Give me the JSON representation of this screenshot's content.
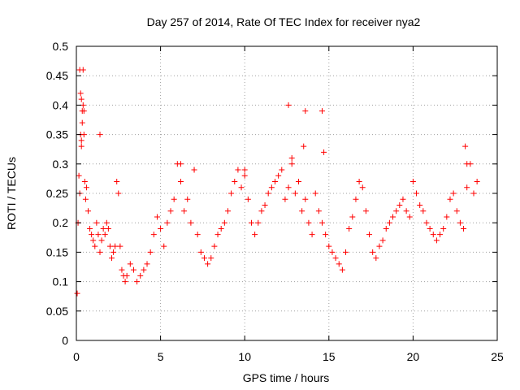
{
  "chart_data": {
    "type": "scatter",
    "title": "Day 257 of 2014, Rate Of TEC Index for receiver nya2",
    "xlabel": "GPS time / hours",
    "ylabel": "ROTI / TECUs",
    "xlim": [
      0,
      25
    ],
    "ylim": [
      0,
      0.5
    ],
    "x_ticks": [
      "0",
      "5",
      "10",
      "15",
      "20",
      "25"
    ],
    "y_ticks": [
      "0",
      "0.05",
      "0.1",
      "0.15",
      "0.2",
      "0.25",
      "0.3",
      "0.35",
      "0.4",
      "0.45",
      "0.5"
    ],
    "grid": true,
    "legend": "none",
    "marker": "plus",
    "color": "#ff0000",
    "series": [
      {
        "x": [
          0.05,
          0.1,
          0.15,
          0.2,
          0.25,
          0.3,
          0.35,
          0.4,
          0.45,
          0.5,
          0.55,
          0.6,
          0.7,
          0.8,
          0.9,
          1.0,
          1.1,
          1.2,
          1.3,
          1.4,
          1.5,
          1.6,
          1.7,
          1.8,
          1.9,
          2.0,
          2.1,
          2.2,
          2.3,
          2.4,
          2.5,
          2.6,
          2.7,
          2.8,
          2.9,
          3.0,
          3.2,
          3.4,
          3.6,
          3.8,
          4.0,
          4.2,
          4.4,
          4.6,
          4.8,
          5.0,
          5.2,
          5.4,
          5.6,
          5.8,
          6.0,
          6.2,
          6.4,
          6.6,
          6.8,
          7.0,
          7.2,
          7.4,
          7.6,
          7.8,
          8.0,
          8.2,
          8.4,
          8.6,
          8.8,
          9.0,
          9.2,
          9.4,
          9.6,
          9.8,
          10.0,
          10.2,
          10.4,
          10.6,
          10.8,
          11.0,
          11.2,
          11.4,
          11.6,
          11.8,
          12.0,
          12.2,
          12.4,
          12.6,
          12.8,
          13.0,
          13.2,
          13.4,
          13.6,
          13.8,
          14.0,
          14.2,
          14.4,
          14.6,
          14.8,
          15.0,
          15.2,
          15.4,
          15.6,
          15.8,
          16.0,
          16.2,
          16.4,
          16.6,
          16.8,
          17.0,
          17.2,
          17.4,
          17.6,
          17.8,
          18.0,
          18.2,
          18.4,
          18.6,
          18.8,
          19.0,
          19.2,
          19.4,
          19.6,
          19.8,
          20.0,
          20.2,
          20.4,
          20.6,
          20.8,
          21.0,
          21.2,
          21.4,
          21.6,
          21.8,
          22.0,
          22.2,
          22.4,
          22.6,
          22.8,
          23.0,
          23.2,
          23.4,
          23.6,
          23.8,
          0.2,
          0.25,
          0.3,
          0.3,
          0.35,
          0.4,
          0.45,
          1.4,
          6.2,
          7.0,
          10.0,
          12.6,
          12.8,
          13.5,
          13.6,
          14.6,
          14.7,
          23.1,
          23.2
        ],
        "y": [
          0.08,
          0.2,
          0.28,
          0.25,
          0.35,
          0.41,
          0.39,
          0.46,
          0.35,
          0.27,
          0.24,
          0.26,
          0.22,
          0.19,
          0.18,
          0.17,
          0.16,
          0.2,
          0.18,
          0.15,
          0.17,
          0.19,
          0.18,
          0.2,
          0.19,
          0.16,
          0.14,
          0.15,
          0.16,
          0.27,
          0.25,
          0.16,
          0.12,
          0.11,
          0.1,
          0.11,
          0.13,
          0.12,
          0.1,
          0.11,
          0.12,
          0.13,
          0.15,
          0.18,
          0.21,
          0.19,
          0.16,
          0.2,
          0.22,
          0.24,
          0.3,
          0.27,
          0.22,
          0.24,
          0.2,
          0.29,
          0.18,
          0.15,
          0.14,
          0.13,
          0.14,
          0.16,
          0.18,
          0.19,
          0.2,
          0.22,
          0.25,
          0.27,
          0.29,
          0.26,
          0.28,
          0.24,
          0.2,
          0.18,
          0.2,
          0.22,
          0.23,
          0.25,
          0.26,
          0.27,
          0.28,
          0.29,
          0.24,
          0.26,
          0.3,
          0.25,
          0.27,
          0.22,
          0.24,
          0.2,
          0.18,
          0.25,
          0.22,
          0.2,
          0.18,
          0.16,
          0.15,
          0.14,
          0.13,
          0.12,
          0.15,
          0.19,
          0.21,
          0.24,
          0.27,
          0.26,
          0.22,
          0.18,
          0.15,
          0.14,
          0.16,
          0.17,
          0.19,
          0.2,
          0.21,
          0.22,
          0.23,
          0.24,
          0.22,
          0.21,
          0.27,
          0.25,
          0.23,
          0.22,
          0.2,
          0.19,
          0.18,
          0.17,
          0.18,
          0.19,
          0.21,
          0.24,
          0.25,
          0.22,
          0.2,
          0.19,
          0.26,
          0.3,
          0.25,
          0.27,
          0.46,
          0.42,
          0.34,
          0.33,
          0.37,
          0.4,
          0.39,
          0.35,
          0.3,
          0.29,
          0.29,
          0.4,
          0.31,
          0.33,
          0.39,
          0.39,
          0.32,
          0.33,
          0.3
        ]
      }
    ]
  }
}
